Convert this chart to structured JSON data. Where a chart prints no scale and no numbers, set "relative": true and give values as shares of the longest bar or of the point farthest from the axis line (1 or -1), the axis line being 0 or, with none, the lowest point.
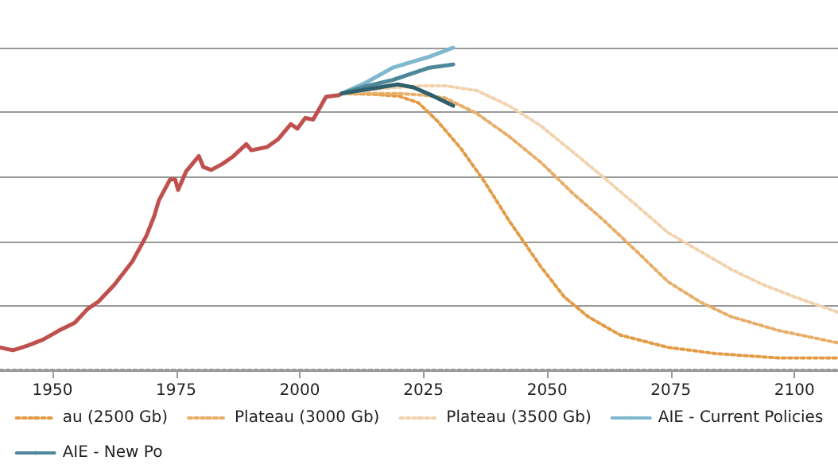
{
  "chart_data": {
    "type": "line",
    "relative": true,
    "xlim": [
      1939.4,
      2108.8
    ],
    "xticks": [
      1950,
      1975,
      2000,
      2025,
      2050,
      2075,
      2100
    ],
    "grid": "y",
    "legend": "bottom",
    "marker": "none",
    "series": [
      {
        "color": "#c0504d",
        "line_style": "solid",
        "x": [
          1939.4,
          1942,
          1944.9,
          1948.1,
          1951.3,
          1954.5,
          1957.1,
          1959.3,
          1962.5,
          1966.1,
          1969,
          1970.6,
          1971.5,
          1973.8,
          1974.8,
          1975.4,
          1977,
          1979.6,
          1980.5,
          1982.1,
          1984.4,
          1986.6,
          1989.2,
          1990.2,
          1993.4,
          1995.6,
          1998.2,
          1999.5,
          2001.1,
          2002.7,
          2004.3,
          2005.3,
          2007.9,
          2008.5
        ],
        "values": [
          0.071,
          0.062,
          0.076,
          0.095,
          0.123,
          0.147,
          0.19,
          0.213,
          0.265,
          0.336,
          0.417,
          0.479,
          0.526,
          0.592,
          0.592,
          0.559,
          0.616,
          0.664,
          0.63,
          0.621,
          0.64,
          0.664,
          0.701,
          0.682,
          0.692,
          0.716,
          0.763,
          0.749,
          0.782,
          0.777,
          0.82,
          0.848,
          0.853,
          0.858
        ]
      },
      {
        "name": "au (2500 Gb)",
        "color": "#e39b45",
        "line_style": "dotted",
        "x": [
          2008.5,
          2015,
          2020,
          2024,
          2027.8,
          2032.6,
          2037.4,
          2042.3,
          2048.7,
          2053.5,
          2058.3,
          2064.8,
          2074.4,
          2084,
          2096.9,
          2108.8
        ],
        "values": [
          0.858,
          0.855,
          0.85,
          0.829,
          0.773,
          0.687,
          0.583,
          0.464,
          0.322,
          0.227,
          0.166,
          0.109,
          0.071,
          0.052,
          0.038,
          0.038
        ]
      },
      {
        "name": "Plateau (3000 Gb)",
        "color": "#e8ad68",
        "line_style": "dotted",
        "x": [
          2008.5,
          2020,
          2025,
          2029.4,
          2035.8,
          2042.3,
          2048.7,
          2055.1,
          2061.5,
          2068,
          2074.4,
          2080.8,
          2087.2,
          2096.9,
          2108.8
        ],
        "values": [
          0.858,
          0.858,
          0.853,
          0.844,
          0.796,
          0.725,
          0.645,
          0.55,
          0.464,
          0.37,
          0.275,
          0.213,
          0.166,
          0.123,
          0.085
        ]
      },
      {
        "name": "Plateau (3500 Gb)",
        "color": "#f2d2ae",
        "line_style": "dotted",
        "x": [
          2008.5,
          2018,
          2025,
          2029.4,
          2035.8,
          2042.3,
          2048.7,
          2055.1,
          2061.5,
          2068,
          2074.4,
          2080.8,
          2087.2,
          2093.7,
          2100.1,
          2108.8
        ],
        "values": [
          0.858,
          0.875,
          0.882,
          0.882,
          0.867,
          0.82,
          0.758,
          0.678,
          0.597,
          0.512,
          0.427,
          0.37,
          0.313,
          0.265,
          0.227,
          0.18
        ]
      },
      {
        "name": "AIE - Current Policies",
        "color": "#7fb8cc",
        "line_style": "solid",
        "x": [
          2008.5,
          2013.3,
          2018.8,
          2026.2,
          2031
        ],
        "values": [
          0.858,
          0.891,
          0.938,
          0.972,
          1.0
        ]
      },
      {
        "name": "AIE - New Po",
        "color": "#4e8799",
        "line_style": "solid",
        "x": [
          2008.5,
          2013.3,
          2018.8,
          2026.2,
          2031
        ],
        "values": [
          0.858,
          0.88,
          0.9,
          0.938,
          0.948
        ]
      },
      {
        "color": "#2f5f6d",
        "line_style": "solid",
        "x": [
          2008.5,
          2014,
          2019.8,
          2023,
          2027,
          2031
        ],
        "values": [
          0.858,
          0.872,
          0.886,
          0.877,
          0.85,
          0.82
        ]
      }
    ]
  }
}
